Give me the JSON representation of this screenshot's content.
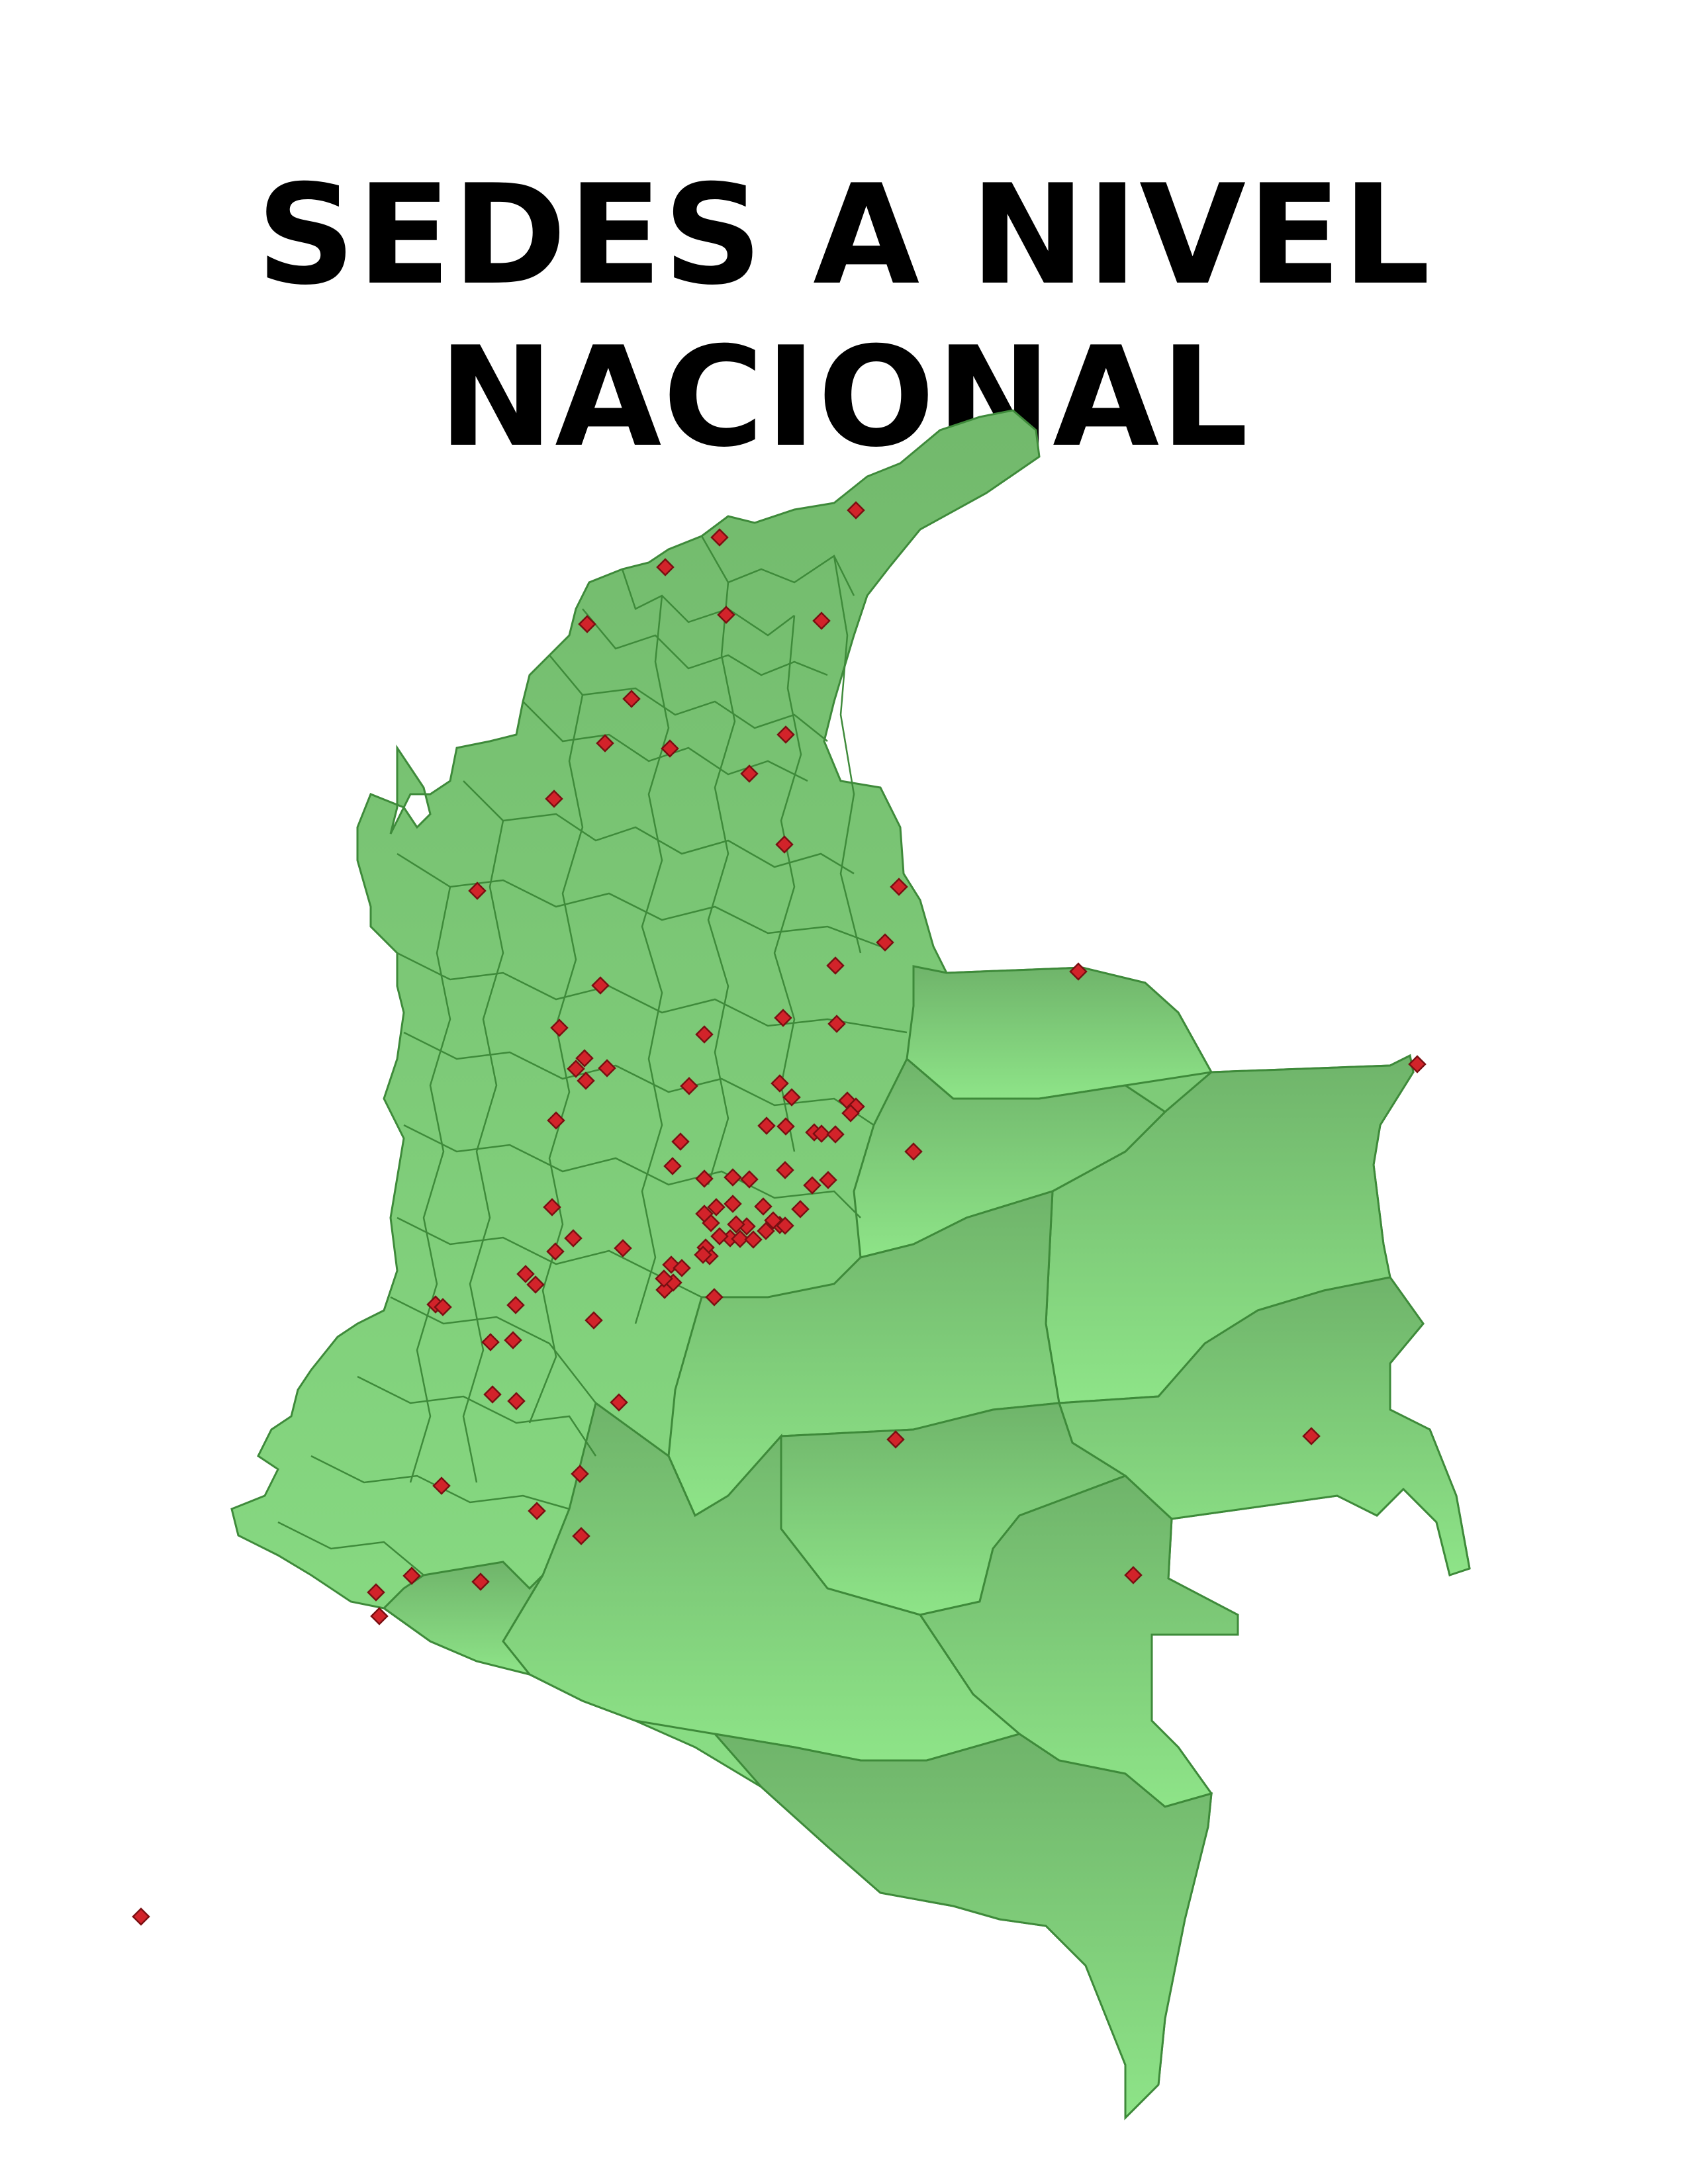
{
  "title": {
    "line1": "SEDES A NIVEL",
    "line2": "NACIONAL"
  },
  "map": {
    "land_color_light": "#8fe68a",
    "land_color_dark": "#6fb96a",
    "border_color": "#3e8a3a",
    "marker_color": "#d2232a",
    "marker_shape": "diamond",
    "marker_count": 98
  }
}
